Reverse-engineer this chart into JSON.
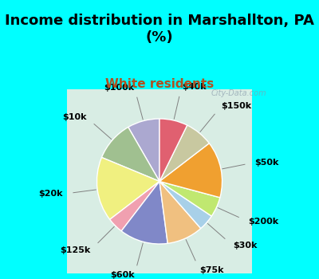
{
  "title": "Income distribution in Marshallton, PA\n(%)",
  "subtitle": "White residents",
  "bg_cyan": "#00FFFF",
  "bg_chart": "#d8ede4",
  "labels": [
    "$100k",
    "$10k",
    "$20k",
    "$125k",
    "$60k",
    "$75k",
    "$30k",
    "$200k",
    "$50k",
    "$150k",
    "$40k"
  ],
  "values": [
    8,
    10,
    16,
    4,
    12,
    9,
    4,
    5,
    14,
    7,
    7
  ],
  "colors": [
    "#aba8d0",
    "#a0c090",
    "#f0f080",
    "#f0a0b0",
    "#8088c8",
    "#f0c080",
    "#a8d0e8",
    "#c0e870",
    "#f0a030",
    "#c8c8a0",
    "#e06070"
  ],
  "startangle": 90,
  "watermark": "City-Data.com",
  "title_fontsize": 13,
  "subtitle_fontsize": 11,
  "label_fontsize": 8
}
